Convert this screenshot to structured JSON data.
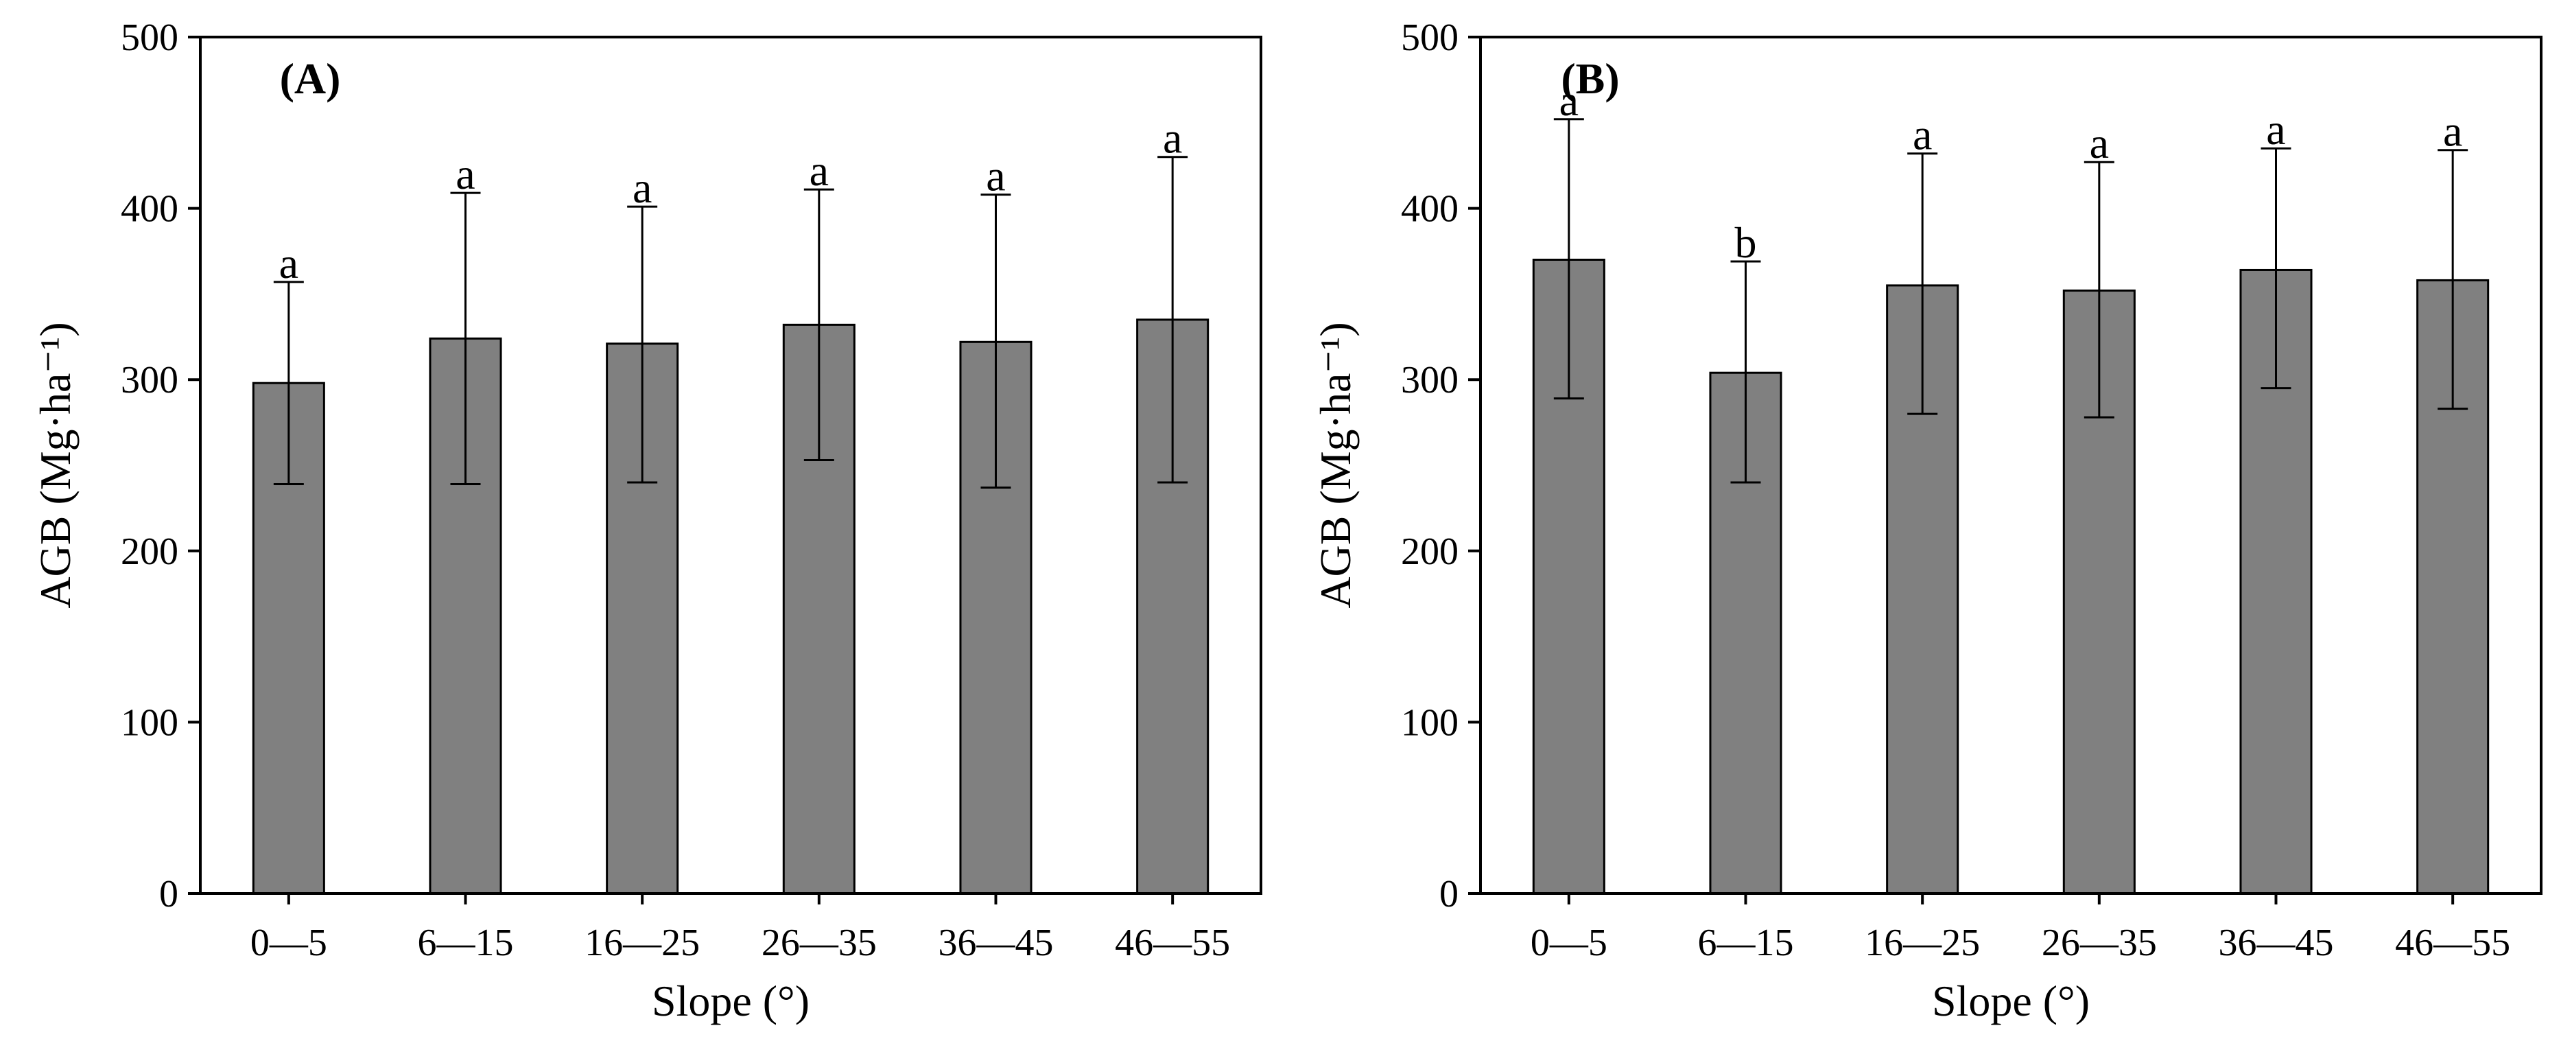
{
  "chart_data": [
    {
      "type": "bar",
      "panel_label": "(A)",
      "categories": [
        "0—5",
        "6—15",
        "16—25",
        "26—35",
        "36—45",
        "46—55"
      ],
      "values": [
        298,
        324,
        321,
        332,
        322,
        335
      ],
      "error_upper": [
        357,
        409,
        401,
        411,
        408,
        430
      ],
      "error_lower": [
        239,
        239,
        240,
        253,
        237,
        240
      ],
      "significance_letters": [
        "a",
        "a",
        "a",
        "a",
        "a",
        "a"
      ],
      "xlabel": "Slope (°)",
      "ylabel": "AGB (Mg·ha⁻¹)",
      "ylim": [
        0,
        500
      ],
      "yticks": [
        0,
        100,
        200,
        300,
        400,
        500
      ],
      "grid": false,
      "bar_color": "#808080"
    },
    {
      "type": "bar",
      "panel_label": "(B)",
      "categories": [
        "0—5",
        "6—15",
        "16—25",
        "26—35",
        "36—45",
        "46—55"
      ],
      "values": [
        370,
        304,
        355,
        352,
        364,
        358
      ],
      "error_upper": [
        452,
        369,
        432,
        427,
        435,
        434
      ],
      "error_lower": [
        289,
        240,
        280,
        278,
        295,
        283
      ],
      "significance_letters": [
        "a",
        "b",
        "a",
        "a",
        "a",
        "a"
      ],
      "xlabel": "Slope (°)",
      "ylabel": "AGB (Mg·ha⁻¹)",
      "ylim": [
        0,
        500
      ],
      "yticks": [
        0,
        100,
        200,
        300,
        400,
        500
      ],
      "grid": false,
      "bar_color": "#808080"
    }
  ]
}
